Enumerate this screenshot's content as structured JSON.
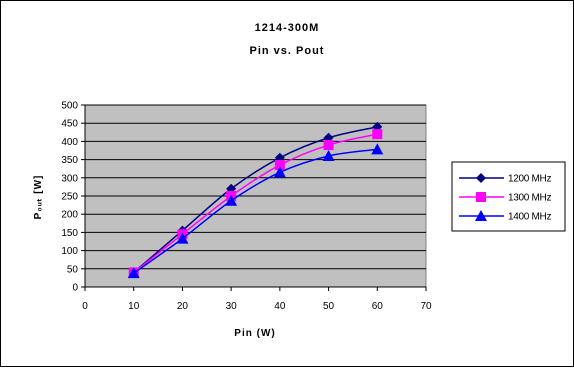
{
  "chart_data": {
    "type": "line",
    "title": "1214-300M",
    "subtitle": "Pin vs. Pout",
    "xlabel": "Pin (W)",
    "ylabel": "P₀ᵤₜ [W]",
    "xlim": [
      0,
      70
    ],
    "ylim": [
      0,
      500
    ],
    "x_ticks": [
      "0",
      "10",
      "20",
      "30",
      "40",
      "50",
      "60",
      "70"
    ],
    "y_ticks": [
      "0",
      "50",
      "100",
      "150",
      "200",
      "250",
      "300",
      "350",
      "400",
      "450",
      "500"
    ],
    "grid": true,
    "legend_position": "right",
    "x": [
      10,
      20,
      30,
      40,
      50,
      60
    ],
    "series": [
      {
        "name": "1200 MHz",
        "values": [
          40,
          155,
          270,
          355,
          410,
          440
        ],
        "color": "#000080",
        "marker": "diamond"
      },
      {
        "name": "1300 MHz",
        "values": [
          40,
          145,
          250,
          335,
          390,
          420
        ],
        "color": "#ff00ff",
        "marker": "square"
      },
      {
        "name": "1400 MHz",
        "values": [
          38,
          133,
          237,
          315,
          360,
          378
        ],
        "color": "#0000ff",
        "marker": "triangle"
      }
    ]
  }
}
